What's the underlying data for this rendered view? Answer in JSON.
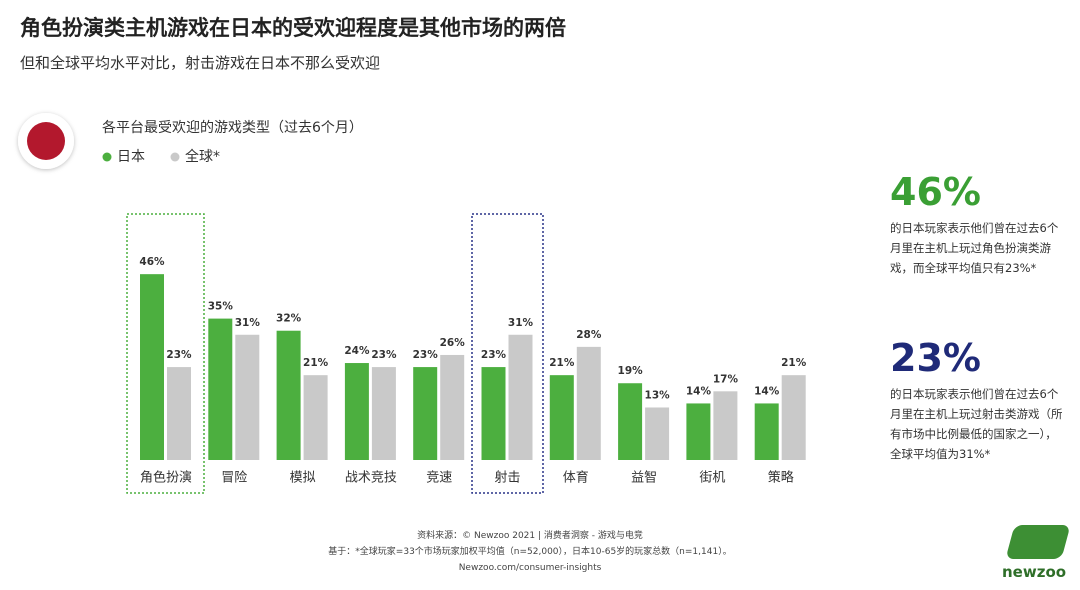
{
  "chart_data": {
    "type": "bar",
    "title": "角色扮演类主机游戏在日本的受欢迎程度是其他市场的两倍",
    "subtitle": "但和全球平均水平对比，射击游戏在日本不那么受欢迎",
    "chart_title": "各平台最受欢迎的游戏类型（过去6个月）",
    "categories": [
      "角色扮演",
      "冒险",
      "模拟",
      "战术竞技",
      "竞速",
      "射击",
      "体育",
      "益智",
      "街机",
      "策略"
    ],
    "series": [
      {
        "name": "日本",
        "color": "#4caf3f",
        "values": [
          46,
          35,
          32,
          24,
          23,
          23,
          21,
          19,
          14,
          14
        ],
        "value_labels": [
          "46%",
          "35%",
          "32%",
          "24%",
          "23%",
          "23%",
          "21%",
          "19%",
          "14%",
          "14%"
        ]
      },
      {
        "name": "全球*",
        "color": "#c9c9c9",
        "values": [
          23,
          31,
          21,
          23,
          26,
          31,
          28,
          13,
          17,
          21
        ],
        "value_labels": [
          "23%",
          "31%",
          "21%",
          "23%",
          "26%",
          "31%",
          "28%",
          "13%",
          "17%",
          "21%"
        ]
      }
    ],
    "annotations": [
      {
        "headline": "46%",
        "color": "#3a9f34",
        "text": "的日本玩家表示他们曾在过去6个月里在主机上玩过角色扮演类游戏，而全球平均值只有23%*"
      },
      {
        "headline": "23%",
        "color": "#1f2a78",
        "text": "的日本玩家表示他们曾在过去6个月里在主机上玩过射击类游戏（所有市场中比例最低的国家之一），全球平均值为31%*"
      }
    ],
    "footnotes": [
      "资料来源：© Newzoo 2021 | 消费者洞察 - 游戏与电竞",
      "基于：*全球玩家=33个市场玩家加权平均值（n=52,000），日本10-65岁的玩家总数（n=1,141）。",
      "Newzoo.com/consumer-insights"
    ],
    "logo": "newzoo"
  }
}
